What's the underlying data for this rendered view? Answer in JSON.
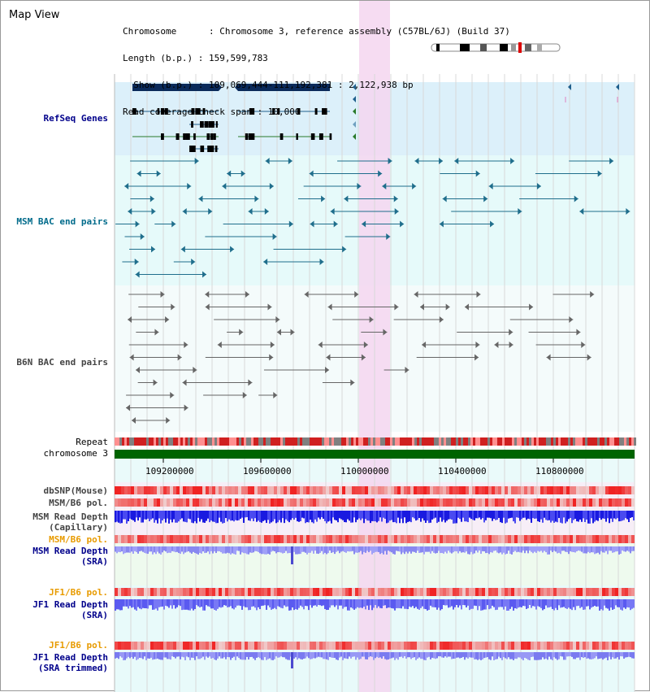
{
  "page": {
    "title": "Map View"
  },
  "info": {
    "lines": [
      "Chromosome      : Chromosome 3, reference assembly (C57BL/6J) (Build 37)",
      "Length (b.p.) : 159,599,783",
      "  Show (b.p.) : 109,069,444-111,192,381 : 2,122,938 bp",
      "Read coverage check span : 10,000"
    ]
  },
  "tracks": {
    "refseq": "RefSeq Genes",
    "msm_bac": "MSM BAC end pairs",
    "b6n_bac": "B6N BAC end pairs",
    "repeat": "Repeat",
    "chromosome": "chromosome 3",
    "dbsnp": "dbSNP(Mouse)",
    "msm_b6_pol_1": "MSM/B6 pol.",
    "msm_read_depth_cap_1": "MSM Read Depth",
    "msm_read_depth_cap_2": "(Capillary)",
    "msm_b6_pol_2": "MSM/B6 pol.",
    "msm_read_depth_sra_1": "MSM Read Depth",
    "msm_read_depth_sra_2": "(SRA)",
    "jf1_b6_pol_1": "JF1/B6 pol.",
    "jf1_read_depth_1": "JF1 Read Depth",
    "jf1_read_depth_2": "(SRA)",
    "jf1_b6_pol_2": "JF1/B6 pol.",
    "jf1_read_depth_trim_1": "JF1 Read Depth",
    "jf1_read_depth_trim_2": "(SRA trimmed)"
  },
  "axis": {
    "ticks": [
      "109200000",
      "109600000",
      "110000000",
      "110400000",
      "110800000"
    ]
  },
  "colors": {
    "refseq_bg": "#dcf0fa",
    "bac_bg": "#e6fafa",
    "highlight": "#f5d6f0",
    "chromosome": "#006400",
    "msm_gene": "#1f6e8c",
    "b6n_gene": "#666666",
    "depth_blue": "#2828f0"
  }
}
